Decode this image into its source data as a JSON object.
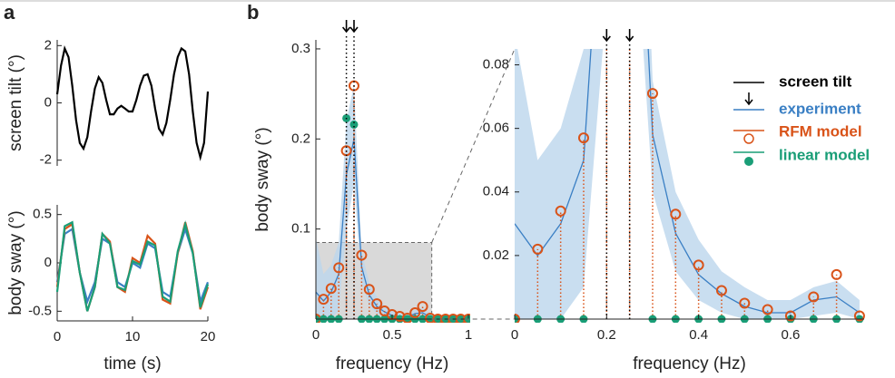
{
  "panel_labels": [
    "a",
    "b"
  ],
  "chart_data": [
    {
      "type": "line",
      "ylabel": "screen tilt (°)",
      "xlim": [
        0,
        20
      ],
      "ylim": [
        -2.2,
        2.2
      ],
      "yticks": [
        2,
        0,
        -2
      ],
      "x": [
        0,
        0.5,
        1,
        1.5,
        2,
        2.5,
        3,
        3.5,
        4,
        4.5,
        5,
        5.5,
        6,
        6.5,
        7,
        7.5,
        8,
        8.5,
        9,
        9.5,
        10,
        10.5,
        11,
        11.5,
        12,
        12.5,
        13,
        13.5,
        14,
        14.5,
        15,
        15.5,
        16,
        16.5,
        17,
        17.5,
        18,
        18.5,
        19,
        19.5,
        20
      ],
      "series": [
        {
          "name": "screen tilt",
          "color": "#000000",
          "values": [
            0.3,
            1.3,
            1.9,
            1.6,
            0.6,
            -0.6,
            -1.4,
            -1.6,
            -1.2,
            -0.3,
            0.5,
            0.9,
            0.7,
            0.1,
            -0.4,
            -0.4,
            -0.2,
            -0.1,
            -0.2,
            -0.3,
            -0.3,
            0.1,
            0.6,
            0.95,
            1.0,
            0.6,
            -0.2,
            -0.9,
            -1.1,
            -0.7,
            0.1,
            1.0,
            1.6,
            1.9,
            1.8,
            1.0,
            -0.3,
            -1.4,
            -1.9,
            -1.4,
            0.4
          ]
        }
      ]
    },
    {
      "type": "line",
      "xlabel": "time (s)",
      "ylabel": "body sway (°)",
      "xlim": [
        0,
        20
      ],
      "ylim": [
        -0.6,
        0.6
      ],
      "xticks": [
        0,
        10,
        20
      ],
      "yticks": [
        0.5,
        0,
        -0.5
      ],
      "x": [
        0,
        1,
        2,
        3,
        4,
        5,
        6,
        7,
        8,
        9,
        10,
        11,
        12,
        13,
        14,
        15,
        16,
        17,
        18,
        19,
        20
      ],
      "series": [
        {
          "name": "experiment",
          "color": "#3a7fc4",
          "values": [
            -0.2,
            0.3,
            0.35,
            -0.1,
            -0.4,
            -0.2,
            0.25,
            0.2,
            -0.2,
            -0.25,
            0,
            -0.05,
            0.2,
            0.15,
            -0.3,
            -0.35,
            0.1,
            0.35,
            0.1,
            -0.4,
            -0.2
          ]
        },
        {
          "name": "RFM model",
          "color": "#d95319",
          "values": [
            -0.25,
            0.35,
            0.4,
            -0.1,
            -0.5,
            -0.25,
            0.3,
            0.22,
            -0.25,
            -0.3,
            0.05,
            0,
            0.28,
            0.2,
            -0.38,
            -0.42,
            0.1,
            0.42,
            0.12,
            -0.48,
            -0.25
          ]
        },
        {
          "name": "linear model",
          "color": "#1a9e77",
          "values": [
            -0.3,
            0.38,
            0.42,
            -0.1,
            -0.5,
            -0.25,
            0.3,
            0.2,
            -0.25,
            -0.28,
            0.02,
            -0.02,
            0.22,
            0.18,
            -0.35,
            -0.4,
            0.12,
            0.4,
            0.1,
            -0.46,
            -0.22
          ]
        }
      ]
    },
    {
      "type": "stem",
      "xlabel": "frequency (Hz)",
      "ylabel": "body sway (°)",
      "xlim": [
        0,
        1
      ],
      "ylim": [
        0,
        0.31
      ],
      "xticks": [
        0,
        0.5,
        1
      ],
      "yticks": [
        0.1,
        0.2,
        0.3
      ],
      "tilt_frequencies": [
        0.2,
        0.25
      ],
      "band_color": "#bcd6ec",
      "x": [
        0,
        0.05,
        0.1,
        0.15,
        0.2,
        0.25,
        0.3,
        0.35,
        0.4,
        0.45,
        0.5,
        0.55,
        0.6,
        0.65,
        0.7,
        0.75,
        0.8,
        0.85,
        0.9,
        0.95,
        1
      ],
      "series": [
        {
          "name": "experiment",
          "color": "#3a7fc4",
          "values": [
            0.03,
            0.02,
            0.03,
            0.05,
            0.16,
            0.2,
            0.058,
            0.027,
            0.014,
            0.008,
            0.004,
            0.002,
            0.002,
            0.006,
            0.007,
            0.002,
            0.001,
            0.001,
            0.001,
            0.001,
            0.001
          ],
          "upper": [
            0.09,
            0.05,
            0.06,
            0.085,
            0.22,
            0.26,
            0.075,
            0.04,
            0.025,
            0.015,
            0.01,
            0.006,
            0.006,
            0.01,
            0.012,
            0.006,
            0.004,
            0.004,
            0.004,
            0.004,
            0.004
          ],
          "lower": [
            0,
            0,
            0,
            0.01,
            0.1,
            0.15,
            0.04,
            0.015,
            0.006,
            0.002,
            0,
            0,
            0,
            0.001,
            0.002,
            0,
            0,
            0,
            0,
            0,
            0
          ]
        },
        {
          "name": "RFM model",
          "color": "#d95319",
          "marker": "circle-open",
          "values": [
            0,
            0.022,
            0.034,
            0.057,
            0.187,
            0.259,
            0.071,
            0.033,
            0.017,
            0.009,
            0.005,
            0.003,
            0.001,
            0.007,
            0.014,
            0.001,
            0,
            0,
            0,
            0,
            0
          ]
        },
        {
          "name": "linear model",
          "color": "#1a9e77",
          "marker": "dot",
          "values": [
            0,
            0,
            0,
            0,
            0.223,
            0.216,
            0,
            0,
            0,
            0,
            0,
            0,
            0,
            0,
            0,
            0,
            0,
            0,
            0,
            0,
            0
          ]
        }
      ]
    },
    {
      "type": "stem-zoom",
      "xlabel": "frequency (Hz)",
      "xlim": [
        0,
        0.76
      ],
      "ylim": [
        0,
        0.085
      ],
      "xticks": [
        0,
        0.2,
        0.4,
        0.6
      ],
      "yticks": [
        0.02,
        0.04,
        0.06,
        0.08
      ]
    }
  ]
}
